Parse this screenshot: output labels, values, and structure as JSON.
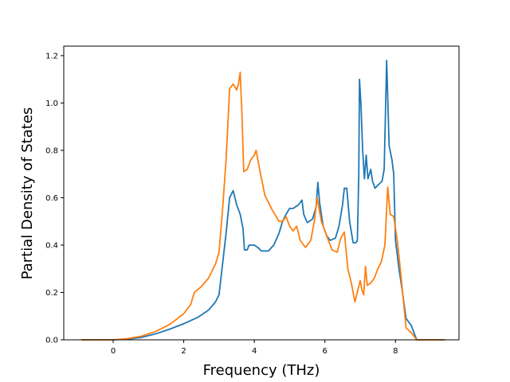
{
  "chart_data": {
    "type": "line",
    "xlabel": "Frequency (THz)",
    "ylabel": "Partial Density of States",
    "xlim": [
      -1.4,
      9.8
    ],
    "ylim": [
      0.0,
      1.24
    ],
    "xticks": [
      0,
      2,
      4,
      6,
      8
    ],
    "yticks": [
      0.0,
      0.2,
      0.4,
      0.6,
      0.8,
      1.0,
      1.2
    ],
    "grid": false,
    "legend": "none",
    "series": [
      {
        "color": "#1f77b4",
        "points": [
          [
            -0.9,
            0.0
          ],
          [
            0.0,
            0.0
          ],
          [
            0.4,
            0.003
          ],
          [
            0.8,
            0.01
          ],
          [
            1.2,
            0.025
          ],
          [
            1.6,
            0.045
          ],
          [
            2.0,
            0.068
          ],
          [
            2.4,
            0.095
          ],
          [
            2.7,
            0.125
          ],
          [
            2.9,
            0.16
          ],
          [
            3.0,
            0.19
          ],
          [
            3.1,
            0.32
          ],
          [
            3.2,
            0.45
          ],
          [
            3.3,
            0.6
          ],
          [
            3.4,
            0.63
          ],
          [
            3.5,
            0.57
          ],
          [
            3.6,
            0.53
          ],
          [
            3.68,
            0.47
          ],
          [
            3.72,
            0.38
          ],
          [
            3.8,
            0.38
          ],
          [
            3.85,
            0.4
          ],
          [
            4.0,
            0.4
          ],
          [
            4.1,
            0.39
          ],
          [
            4.2,
            0.375
          ],
          [
            4.4,
            0.375
          ],
          [
            4.55,
            0.4
          ],
          [
            4.7,
            0.45
          ],
          [
            4.8,
            0.5
          ],
          [
            4.9,
            0.53
          ],
          [
            5.0,
            0.555
          ],
          [
            5.1,
            0.555
          ],
          [
            5.25,
            0.57
          ],
          [
            5.35,
            0.59
          ],
          [
            5.4,
            0.53
          ],
          [
            5.5,
            0.495
          ],
          [
            5.65,
            0.51
          ],
          [
            5.75,
            0.56
          ],
          [
            5.8,
            0.665
          ],
          [
            5.85,
            0.58
          ],
          [
            5.95,
            0.48
          ],
          [
            6.05,
            0.44
          ],
          [
            6.15,
            0.42
          ],
          [
            6.3,
            0.43
          ],
          [
            6.4,
            0.48
          ],
          [
            6.5,
            0.57
          ],
          [
            6.55,
            0.64
          ],
          [
            6.62,
            0.64
          ],
          [
            6.7,
            0.5
          ],
          [
            6.8,
            0.41
          ],
          [
            6.88,
            0.41
          ],
          [
            6.92,
            0.42
          ],
          [
            6.96,
            0.7
          ],
          [
            6.98,
            1.1
          ],
          [
            7.02,
            1.0
          ],
          [
            7.07,
            0.8
          ],
          [
            7.12,
            0.68
          ],
          [
            7.17,
            0.78
          ],
          [
            7.22,
            0.68
          ],
          [
            7.3,
            0.72
          ],
          [
            7.35,
            0.67
          ],
          [
            7.42,
            0.64
          ],
          [
            7.55,
            0.66
          ],
          [
            7.62,
            0.67
          ],
          [
            7.68,
            0.72
          ],
          [
            7.75,
            1.18
          ],
          [
            7.82,
            0.82
          ],
          [
            7.9,
            0.76
          ],
          [
            7.95,
            0.7
          ],
          [
            8.0,
            0.42
          ],
          [
            8.1,
            0.3
          ],
          [
            8.2,
            0.2
          ],
          [
            8.3,
            0.09
          ],
          [
            8.45,
            0.06
          ],
          [
            8.6,
            0.0
          ],
          [
            9.4,
            0.0
          ]
        ]
      },
      {
        "color": "#ff7f0e",
        "points": [
          [
            -0.9,
            0.0
          ],
          [
            0.0,
            0.0
          ],
          [
            0.4,
            0.005
          ],
          [
            0.8,
            0.015
          ],
          [
            1.2,
            0.035
          ],
          [
            1.6,
            0.065
          ],
          [
            2.0,
            0.11
          ],
          [
            2.2,
            0.15
          ],
          [
            2.3,
            0.2
          ],
          [
            2.5,
            0.225
          ],
          [
            2.7,
            0.26
          ],
          [
            2.9,
            0.32
          ],
          [
            3.0,
            0.37
          ],
          [
            3.1,
            0.55
          ],
          [
            3.2,
            0.76
          ],
          [
            3.3,
            1.06
          ],
          [
            3.4,
            1.08
          ],
          [
            3.5,
            1.055
          ],
          [
            3.55,
            1.08
          ],
          [
            3.6,
            1.13
          ],
          [
            3.65,
            0.95
          ],
          [
            3.7,
            0.71
          ],
          [
            3.8,
            0.72
          ],
          [
            3.9,
            0.76
          ],
          [
            4.0,
            0.78
          ],
          [
            4.05,
            0.8
          ],
          [
            4.15,
            0.72
          ],
          [
            4.3,
            0.61
          ],
          [
            4.5,
            0.55
          ],
          [
            4.7,
            0.5
          ],
          [
            4.8,
            0.5
          ],
          [
            4.9,
            0.52
          ],
          [
            5.0,
            0.48
          ],
          [
            5.1,
            0.46
          ],
          [
            5.2,
            0.48
          ],
          [
            5.3,
            0.42
          ],
          [
            5.45,
            0.39
          ],
          [
            5.6,
            0.42
          ],
          [
            5.7,
            0.5
          ],
          [
            5.78,
            0.6
          ],
          [
            5.9,
            0.5
          ],
          [
            6.0,
            0.46
          ],
          [
            6.1,
            0.42
          ],
          [
            6.2,
            0.38
          ],
          [
            6.35,
            0.37
          ],
          [
            6.45,
            0.43
          ],
          [
            6.55,
            0.455
          ],
          [
            6.65,
            0.3
          ],
          [
            6.75,
            0.24
          ],
          [
            6.85,
            0.16
          ],
          [
            6.95,
            0.22
          ],
          [
            7.0,
            0.25
          ],
          [
            7.05,
            0.21
          ],
          [
            7.1,
            0.19
          ],
          [
            7.15,
            0.31
          ],
          [
            7.2,
            0.23
          ],
          [
            7.3,
            0.24
          ],
          [
            7.4,
            0.26
          ],
          [
            7.5,
            0.3
          ],
          [
            7.6,
            0.33
          ],
          [
            7.7,
            0.4
          ],
          [
            7.78,
            0.645
          ],
          [
            7.85,
            0.53
          ],
          [
            7.95,
            0.52
          ],
          [
            8.05,
            0.42
          ],
          [
            8.15,
            0.28
          ],
          [
            8.3,
            0.05
          ],
          [
            8.45,
            0.03
          ],
          [
            8.6,
            0.0
          ],
          [
            9.4,
            0.0
          ]
        ]
      }
    ]
  }
}
